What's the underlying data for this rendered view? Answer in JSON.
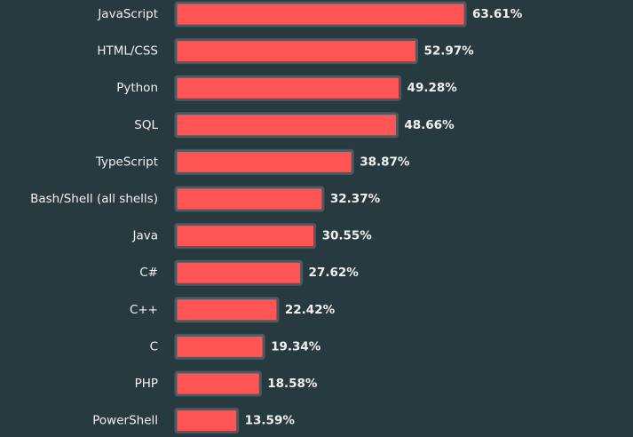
{
  "chart_data": {
    "type": "bar",
    "orientation": "horizontal",
    "categories": [
      "JavaScript",
      "HTML/CSS",
      "Python",
      "SQL",
      "TypeScript",
      "Bash/Shell (all shells)",
      "Java",
      "C#",
      "C++",
      "C",
      "PHP",
      "PowerShell"
    ],
    "values": [
      63.61,
      52.97,
      49.28,
      48.66,
      38.87,
      32.37,
      30.55,
      27.62,
      22.42,
      19.34,
      18.58,
      13.59
    ],
    "value_labels": [
      "63.61%",
      "52.97%",
      "49.28%",
      "48.66%",
      "38.87%",
      "32.37%",
      "30.55%",
      "27.62%",
      "22.42%",
      "19.34%",
      "18.58%",
      "13.59%"
    ],
    "unit": "%",
    "title": "",
    "xlabel": "",
    "ylabel": "",
    "xlim": [
      0,
      63.61
    ],
    "grid": false,
    "legend": "none"
  },
  "colors": {
    "background": "#273a40",
    "bar_fill": "#ff5555",
    "bar_stroke": "#4d5a62",
    "text": "#f2f2f2"
  }
}
